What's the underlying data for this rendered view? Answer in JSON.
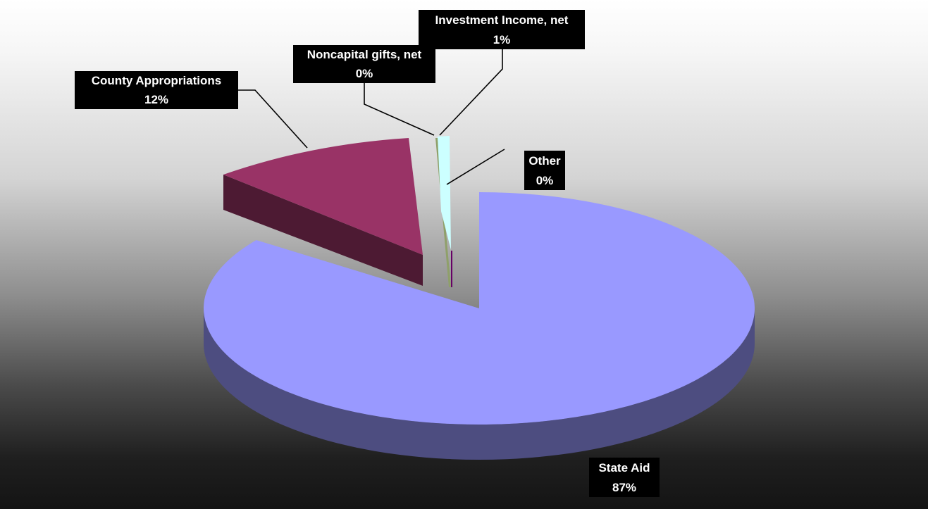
{
  "chart_data": {
    "type": "pie",
    "subtype": "3d-exploded",
    "legend": "none",
    "slices": [
      {
        "name": "State Aid",
        "value": 87,
        "label": "87%",
        "color": "#9999ff",
        "side_color": "#4d4d80"
      },
      {
        "name": "County Appropriations",
        "value": 12,
        "label": "12%",
        "color": "#993366",
        "side_color": "#4d1a33"
      },
      {
        "name": "Noncapital gifts, net",
        "value": 0,
        "label": "0%",
        "color": "#8fa06a",
        "side_color": "#5a6a3a"
      },
      {
        "name": "Investment Income, net",
        "value": 1,
        "label": "1%",
        "color": "#ccffff",
        "side_color": "#80a0a0"
      },
      {
        "name": "Other",
        "value": 0,
        "label": "0%",
        "color": "#660066",
        "side_color": "#330033"
      }
    ]
  }
}
